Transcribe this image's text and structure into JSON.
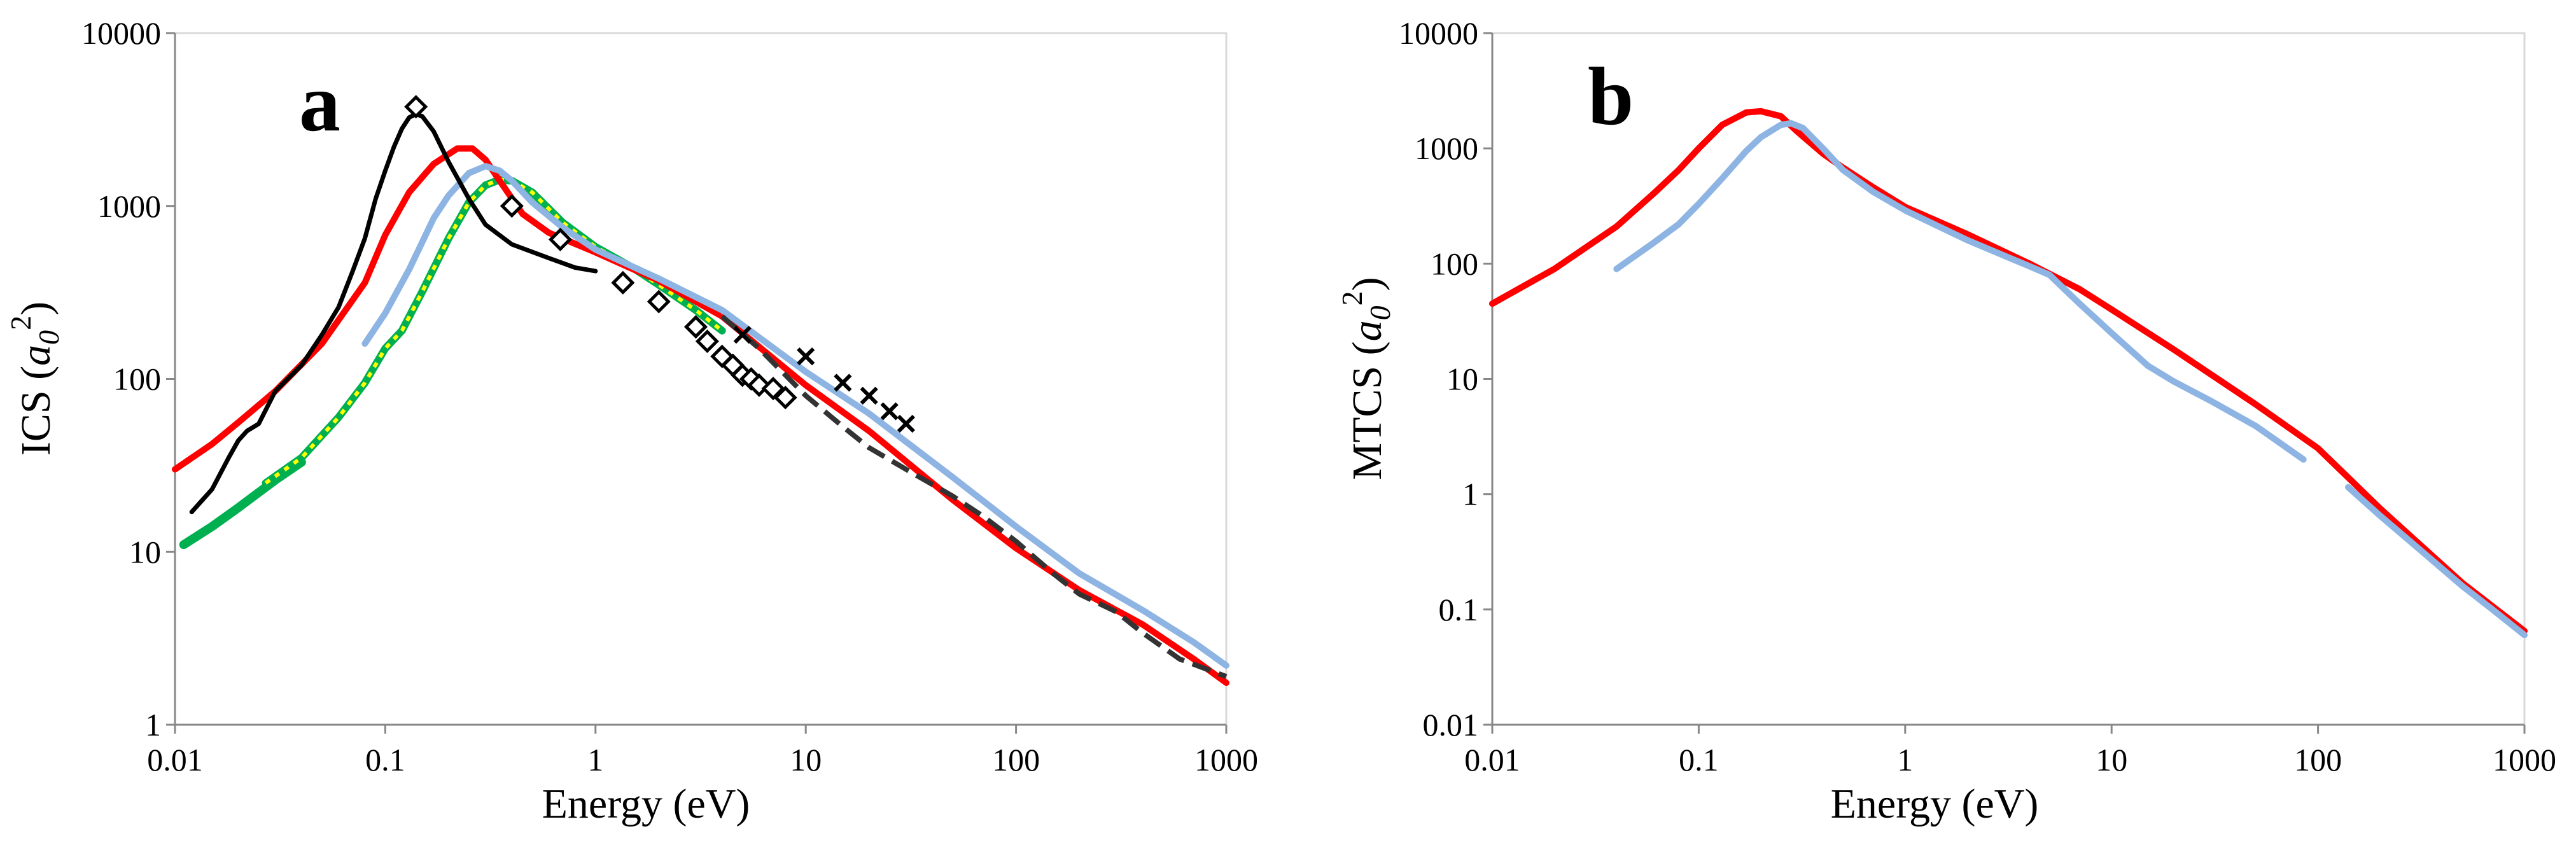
{
  "chart_data": [
    {
      "panel": "a",
      "type": "line",
      "xscale": "log",
      "yscale": "log",
      "xlim": [
        0.01,
        1000
      ],
      "ylim": [
        1,
        10000
      ],
      "xlabel": "Energy (eV)",
      "ylabel_main": "ICS (",
      "ylabel_sym": "a",
      "ylabel_sub": "0",
      "ylabel_sup": "2",
      "ylabel_close": ")",
      "xticks": [
        {
          "value": 0.01,
          "label": "0.01"
        },
        {
          "value": 0.1,
          "label": "0.1"
        },
        {
          "value": 1,
          "label": "1"
        },
        {
          "value": 10,
          "label": "10"
        },
        {
          "value": 100,
          "label": "100"
        },
        {
          "value": 1000,
          "label": "1000"
        }
      ],
      "yticks": [
        {
          "value": 1,
          "label": "1"
        },
        {
          "value": 10,
          "label": "10"
        },
        {
          "value": 100,
          "label": "100"
        },
        {
          "value": 1000,
          "label": "1000"
        },
        {
          "value": 10000,
          "label": "10000"
        }
      ],
      "series": [
        {
          "name": "green-solid",
          "color": "#00b050",
          "width": 14,
          "style": "solid",
          "points": [
            [
              0.011,
              11
            ],
            [
              0.015,
              14
            ],
            [
              0.02,
              18
            ],
            [
              0.03,
              26
            ],
            [
              0.04,
              33
            ]
          ]
        },
        {
          "name": "green-yellow-dotted",
          "color": "#00b050",
          "width": 12,
          "style": "solid",
          "overlay": "#ffff00",
          "points": [
            [
              0.027,
              25
            ],
            [
              0.04,
              35
            ],
            [
              0.06,
              60
            ],
            [
              0.08,
              95
            ],
            [
              0.1,
              150
            ],
            [
              0.12,
              190
            ],
            [
              0.15,
              320
            ],
            [
              0.2,
              650
            ],
            [
              0.25,
              1050
            ],
            [
              0.3,
              1320
            ],
            [
              0.35,
              1420
            ],
            [
              0.4,
              1400
            ],
            [
              0.5,
              1200
            ],
            [
              0.7,
              800
            ],
            [
              1,
              580
            ],
            [
              1.5,
              440
            ],
            [
              2,
              350
            ],
            [
              3,
              250
            ],
            [
              4,
              190
            ]
          ]
        },
        {
          "name": "red",
          "color": "#ff0000",
          "width": 10,
          "style": "solid",
          "points": [
            [
              0.01,
              30
            ],
            [
              0.015,
              42
            ],
            [
              0.02,
              56
            ],
            [
              0.03,
              85
            ],
            [
              0.05,
              160
            ],
            [
              0.08,
              360
            ],
            [
              0.1,
              680
            ],
            [
              0.13,
              1200
            ],
            [
              0.17,
              1750
            ],
            [
              0.22,
              2150
            ],
            [
              0.26,
              2150
            ],
            [
              0.3,
              1850
            ],
            [
              0.35,
              1400
            ],
            [
              0.45,
              900
            ],
            [
              0.6,
              700
            ],
            [
              1,
              540
            ],
            [
              2,
              370
            ],
            [
              4,
              230
            ],
            [
              10,
              92
            ],
            [
              20,
              50
            ],
            [
              50,
              20
            ],
            [
              100,
              10.5
            ],
            [
              200,
              6
            ],
            [
              400,
              3.8
            ],
            [
              700,
              2.4
            ],
            [
              1000,
              1.75
            ]
          ]
        },
        {
          "name": "light-blue",
          "color": "#8db4e2",
          "width": 10,
          "style": "solid",
          "points": [
            [
              0.08,
              160
            ],
            [
              0.1,
              240
            ],
            [
              0.13,
              430
            ],
            [
              0.17,
              850
            ],
            [
              0.2,
              1150
            ],
            [
              0.25,
              1550
            ],
            [
              0.3,
              1700
            ],
            [
              0.35,
              1600
            ],
            [
              0.4,
              1400
            ],
            [
              0.5,
              1050
            ],
            [
              0.7,
              750
            ],
            [
              1,
              560
            ],
            [
              2,
              380
            ],
            [
              4,
              250
            ],
            [
              10,
              110
            ],
            [
              20,
              63
            ],
            [
              50,
              27
            ],
            [
              100,
              14
            ],
            [
              200,
              7.5
            ],
            [
              400,
              4.6
            ],
            [
              700,
              3
            ],
            [
              1000,
              2.2
            ]
          ]
        },
        {
          "name": "black-solid",
          "color": "#000000",
          "width": 7,
          "style": "solid",
          "points": [
            [
              0.012,
              17
            ],
            [
              0.015,
              23
            ],
            [
              0.018,
              35
            ],
            [
              0.02,
              44
            ],
            [
              0.022,
              50
            ],
            [
              0.025,
              55
            ],
            [
              0.03,
              85
            ],
            [
              0.04,
              120
            ],
            [
              0.05,
              180
            ],
            [
              0.06,
              260
            ],
            [
              0.07,
              420
            ],
            [
              0.08,
              650
            ],
            [
              0.09,
              1100
            ],
            [
              0.1,
              1600
            ],
            [
              0.11,
              2200
            ],
            [
              0.12,
              2800
            ],
            [
              0.13,
              3250
            ],
            [
              0.14,
              3400
            ],
            [
              0.15,
              3300
            ],
            [
              0.17,
              2700
            ],
            [
              0.2,
              1800
            ],
            [
              0.25,
              1100
            ],
            [
              0.3,
              780
            ],
            [
              0.4,
              600
            ],
            [
              0.6,
              500
            ],
            [
              0.8,
              440
            ],
            [
              1,
              420
            ]
          ]
        },
        {
          "name": "black-dashed",
          "color": "#333333",
          "width": 8,
          "style": "dashed",
          "points": [
            [
              4,
              230
            ],
            [
              6,
              150
            ],
            [
              10,
              80
            ],
            [
              15,
              53
            ],
            [
              20,
              40
            ],
            [
              30,
              30
            ],
            [
              50,
              21
            ],
            [
              70,
              16
            ],
            [
              100,
              11.5
            ],
            [
              150,
              7.5
            ],
            [
              200,
              5.7
            ],
            [
              300,
              4.5
            ],
            [
              400,
              3.4
            ],
            [
              600,
              2.4
            ],
            [
              1000,
              1.9
            ]
          ]
        }
      ],
      "markers_diamond": [
        [
          0.14,
          3750
        ],
        [
          0.4,
          1000
        ],
        [
          0.68,
          640
        ],
        [
          1.35,
          360
        ],
        [
          2,
          280
        ],
        [
          3,
          200
        ],
        [
          3.4,
          165
        ],
        [
          4,
          135
        ],
        [
          4.5,
          120
        ],
        [
          5,
          105
        ],
        [
          5.5,
          100
        ],
        [
          6,
          92
        ],
        [
          7,
          88
        ],
        [
          8,
          78
        ]
      ],
      "markers_cross": [
        [
          5,
          180
        ],
        [
          10,
          135
        ],
        [
          15,
          95
        ],
        [
          20,
          80
        ],
        [
          25,
          65
        ],
        [
          30,
          55
        ]
      ]
    },
    {
      "panel": "b",
      "type": "line",
      "xscale": "log",
      "yscale": "log",
      "xlim": [
        0.01,
        1000
      ],
      "ylim": [
        0.01,
        10000
      ],
      "xlabel": "Energy (eV)",
      "ylabel_main": "MTCS (",
      "ylabel_sym": "a",
      "ylabel_sub": "0",
      "ylabel_sup": "2",
      "ylabel_close": ")",
      "xticks": [
        {
          "value": 0.01,
          "label": "0.01"
        },
        {
          "value": 0.1,
          "label": "0.1"
        },
        {
          "value": 1,
          "label": "1"
        },
        {
          "value": 10,
          "label": "10"
        },
        {
          "value": 100,
          "label": "100"
        },
        {
          "value": 1000,
          "label": "1000"
        }
      ],
      "yticks": [
        {
          "value": 0.01,
          "label": "0.01"
        },
        {
          "value": 0.1,
          "label": "0.1"
        },
        {
          "value": 1,
          "label": "1"
        },
        {
          "value": 10,
          "label": "10"
        },
        {
          "value": 100,
          "label": "100"
        },
        {
          "value": 1000,
          "label": "1000"
        },
        {
          "value": 10000,
          "label": "10000"
        }
      ],
      "series": [
        {
          "name": "red",
          "color": "#ff0000",
          "width": 10,
          "style": "solid",
          "points": [
            [
              0.01,
              45
            ],
            [
              0.02,
              90
            ],
            [
              0.04,
              210
            ],
            [
              0.06,
              400
            ],
            [
              0.08,
              650
            ],
            [
              0.1,
              1000
            ],
            [
              0.13,
              1600
            ],
            [
              0.17,
              2050
            ],
            [
              0.2,
              2100
            ],
            [
              0.25,
              1900
            ],
            [
              0.3,
              1400
            ],
            [
              0.4,
              900
            ],
            [
              0.5,
              680
            ],
            [
              0.7,
              460
            ],
            [
              1,
              310
            ],
            [
              2,
              180
            ],
            [
              4,
              100
            ],
            [
              7,
              60
            ],
            [
              10,
              40
            ],
            [
              20,
              18
            ],
            [
              50,
              6
            ],
            [
              100,
              2.5
            ],
            [
              200,
              0.75
            ],
            [
              500,
              0.17
            ],
            [
              1000,
              0.065
            ]
          ]
        },
        {
          "name": "light-blue-1",
          "color": "#8db4e2",
          "width": 10,
          "style": "solid",
          "points": [
            [
              0.04,
              90
            ],
            [
              0.06,
              150
            ],
            [
              0.08,
              220
            ],
            [
              0.1,
              330
            ],
            [
              0.13,
              550
            ],
            [
              0.17,
              950
            ],
            [
              0.2,
              1250
            ],
            [
              0.25,
              1600
            ],
            [
              0.28,
              1650
            ],
            [
              0.32,
              1500
            ],
            [
              0.4,
              1000
            ],
            [
              0.5,
              650
            ],
            [
              0.7,
              420
            ],
            [
              1,
              290
            ],
            [
              2,
              160
            ],
            [
              4,
              95
            ],
            [
              5,
              80
            ],
            [
              7,
              45
            ],
            [
              10,
              25
            ],
            [
              15,
              13
            ],
            [
              20,
              9.5
            ],
            [
              30,
              6.5
            ],
            [
              50,
              3.9
            ],
            [
              85,
              2
            ]
          ]
        },
        {
          "name": "light-blue-2",
          "color": "#8db4e2",
          "width": 10,
          "style": "solid",
          "points": [
            [
              140,
              1.15
            ],
            [
              200,
              0.65
            ],
            [
              300,
              0.35
            ],
            [
              500,
              0.16
            ],
            [
              700,
              0.1
            ],
            [
              1000,
              0.06
            ]
          ]
        }
      ]
    }
  ],
  "panel_labels": [
    "a",
    "b"
  ]
}
